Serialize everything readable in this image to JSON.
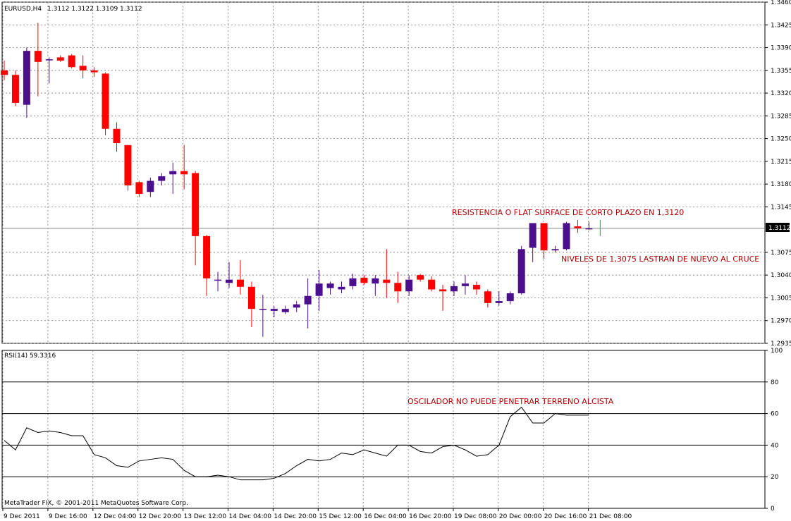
{
  "header": {
    "symbol": "EURUSD,H4",
    "ohlc": "1.3112 1.3122 1.3109 1.3112"
  },
  "rsi_header": "RSI(14) 59.3316",
  "copyright": "MetaTrader FIX, © 2001-2011 MetaQuotes Software Corp.",
  "current_price_label": "1.3112",
  "annotations": {
    "resistance": "RESISTENCIA O FLAT SURFACE  DE CORTO PLAZO EN 1,3120",
    "levels": "NIVELES DE 1,3075 LASTRAN DE NUEVO AL CRUCE",
    "oscillator": "OSCILADOR NO PUEDE PENETRAR TERRENO ALCISTA"
  },
  "colors": {
    "bull": "#4b0f8c",
    "bear": "#ff0000",
    "grid": "#7a7a7a",
    "annotation": "#b00000"
  },
  "chart_data": [
    {
      "type": "candlestick",
      "symbol": "EURUSD",
      "timeframe": "H4",
      "ylim": [
        1.2935,
        1.346
      ],
      "yticks": [
        "1.3460",
        "1.3425",
        "1.3390",
        "1.3355",
        "1.3320",
        "1.3285",
        "1.3250",
        "1.3215",
        "1.3180",
        "1.3145",
        "1.3075",
        "1.3040",
        "1.3005",
        "1.2970",
        "1.2935"
      ],
      "xticks": [
        "9 Dec 2011",
        "9 Dec 16:00",
        "12 Dec 04:00",
        "12 Dec 20:00",
        "13 Dec 12:00",
        "14 Dec 04:00",
        "14 Dec 20:00",
        "15 Dec 12:00",
        "16 Dec 04:00",
        "16 Dec 20:00",
        "19 Dec 08:00",
        "20 Dec 00:00",
        "20 Dec 16:00",
        "21 Dec 08:00"
      ],
      "candles": [
        {
          "o": 1.3355,
          "h": 1.337,
          "l": 1.334,
          "c": 1.3348
        },
        {
          "o": 1.3348,
          "h": 1.3355,
          "l": 1.33,
          "c": 1.3305
        },
        {
          "o": 1.3302,
          "h": 1.339,
          "l": 1.3282,
          "c": 1.3385
        },
        {
          "o": 1.3385,
          "h": 1.3428,
          "l": 1.3315,
          "c": 1.3368
        },
        {
          "o": 1.3372,
          "h": 1.3375,
          "l": 1.3335,
          "c": 1.3372
        },
        {
          "o": 1.3375,
          "h": 1.3378,
          "l": 1.3368,
          "c": 1.337
        },
        {
          "o": 1.3378,
          "h": 1.338,
          "l": 1.3358,
          "c": 1.336
        },
        {
          "o": 1.3362,
          "h": 1.3378,
          "l": 1.3343,
          "c": 1.3355
        },
        {
          "o": 1.3355,
          "h": 1.336,
          "l": 1.3345,
          "c": 1.3352
        },
        {
          "o": 1.335,
          "h": 1.3352,
          "l": 1.3255,
          "c": 1.3265
        },
        {
          "o": 1.3265,
          "h": 1.3275,
          "l": 1.323,
          "c": 1.3243
        },
        {
          "o": 1.324,
          "h": 1.324,
          "l": 1.317,
          "c": 1.3178
        },
        {
          "o": 1.3183,
          "h": 1.3185,
          "l": 1.316,
          "c": 1.3165
        },
        {
          "o": 1.3168,
          "h": 1.319,
          "l": 1.316,
          "c": 1.3185
        },
        {
          "o": 1.3185,
          "h": 1.3197,
          "l": 1.3178,
          "c": 1.3192
        },
        {
          "o": 1.3195,
          "h": 1.3213,
          "l": 1.3165,
          "c": 1.32
        },
        {
          "o": 1.32,
          "h": 1.324,
          "l": 1.3172,
          "c": 1.3195
        },
        {
          "o": 1.3197,
          "h": 1.32,
          "l": 1.3055,
          "c": 1.31
        },
        {
          "o": 1.31,
          "h": 1.3102,
          "l": 1.3008,
          "c": 1.3035
        },
        {
          "o": 1.3033,
          "h": 1.3045,
          "l": 1.3015,
          "c": 1.3033
        },
        {
          "o": 1.3028,
          "h": 1.306,
          "l": 1.302,
          "c": 1.3033
        },
        {
          "o": 1.3033,
          "h": 1.3063,
          "l": 1.301,
          "c": 1.3022
        },
        {
          "o": 1.3022,
          "h": 1.303,
          "l": 1.296,
          "c": 1.2988
        },
        {
          "o": 1.2988,
          "h": 1.301,
          "l": 1.2945,
          "c": 1.2988
        },
        {
          "o": 1.2985,
          "h": 1.2992,
          "l": 1.2975,
          "c": 1.2988
        },
        {
          "o": 1.2983,
          "h": 1.2993,
          "l": 1.298,
          "c": 1.2988
        },
        {
          "o": 1.299,
          "h": 1.3,
          "l": 1.2983,
          "c": 1.2995
        },
        {
          "o": 1.2995,
          "h": 1.3035,
          "l": 1.2958,
          "c": 1.3008
        },
        {
          "o": 1.3008,
          "h": 1.3048,
          "l": 1.2985,
          "c": 1.3027
        },
        {
          "o": 1.302,
          "h": 1.303,
          "l": 1.301,
          "c": 1.3027
        },
        {
          "o": 1.3018,
          "h": 1.303,
          "l": 1.3012,
          "c": 1.3022
        },
        {
          "o": 1.3023,
          "h": 1.3042,
          "l": 1.3018,
          "c": 1.3035
        },
        {
          "o": 1.3036,
          "h": 1.304,
          "l": 1.3025,
          "c": 1.3028
        },
        {
          "o": 1.3027,
          "h": 1.304,
          "l": 1.3008,
          "c": 1.3035
        },
        {
          "o": 1.3033,
          "h": 1.308,
          "l": 1.3005,
          "c": 1.3028
        },
        {
          "o": 1.3028,
          "h": 1.3045,
          "l": 1.2997,
          "c": 1.3015
        },
        {
          "o": 1.3015,
          "h": 1.304,
          "l": 1.3008,
          "c": 1.3033
        },
        {
          "o": 1.304,
          "h": 1.3042,
          "l": 1.303,
          "c": 1.3033
        },
        {
          "o": 1.3033,
          "h": 1.3038,
          "l": 1.3015,
          "c": 1.3018
        },
        {
          "o": 1.3018,
          "h": 1.3025,
          "l": 1.2985,
          "c": 1.3015
        },
        {
          "o": 1.3015,
          "h": 1.303,
          "l": 1.3008,
          "c": 1.3023
        },
        {
          "o": 1.3023,
          "h": 1.304,
          "l": 1.301,
          "c": 1.3027
        },
        {
          "o": 1.3025,
          "h": 1.303,
          "l": 1.301,
          "c": 1.3018
        },
        {
          "o": 1.3015,
          "h": 1.3018,
          "l": 1.299,
          "c": 1.2997
        },
        {
          "o": 1.2997,
          "h": 1.3015,
          "l": 1.2993,
          "c": 1.3
        },
        {
          "o": 1.3,
          "h": 1.3015,
          "l": 1.2995,
          "c": 1.3012
        },
        {
          "o": 1.3012,
          "h": 1.3085,
          "l": 1.301,
          "c": 1.308
        },
        {
          "o": 1.3082,
          "h": 1.312,
          "l": 1.306,
          "c": 1.312
        },
        {
          "o": 1.312,
          "h": 1.312,
          "l": 1.3065,
          "c": 1.3078
        },
        {
          "o": 1.3078,
          "h": 1.3085,
          "l": 1.3075,
          "c": 1.308
        },
        {
          "o": 1.308,
          "h": 1.3122,
          "l": 1.3078,
          "c": 1.312
        },
        {
          "o": 1.3115,
          "h": 1.3125,
          "l": 1.3105,
          "c": 1.3112
        },
        {
          "o": 1.3112,
          "h": 1.3122,
          "l": 1.3109,
          "c": 1.3112
        }
      ],
      "current_price": 1.3112
    },
    {
      "type": "line",
      "name": "RSI(14)",
      "ylim": [
        0,
        100
      ],
      "yticks": [
        "100",
        "80",
        "60",
        "40",
        "20",
        "0"
      ],
      "levels": [
        20,
        40,
        60,
        80
      ],
      "values": [
        43,
        37,
        51,
        48,
        49,
        48,
        46,
        46,
        34,
        32,
        27,
        26,
        30,
        31,
        32,
        31,
        24,
        20,
        20,
        21,
        20,
        18,
        18,
        18,
        19,
        22,
        27,
        31,
        30,
        31,
        35,
        34,
        37,
        35,
        33,
        40,
        40,
        36,
        35,
        39,
        40,
        37,
        33,
        34,
        40,
        58,
        64,
        54,
        54,
        60,
        59,
        59,
        59
      ]
    }
  ]
}
